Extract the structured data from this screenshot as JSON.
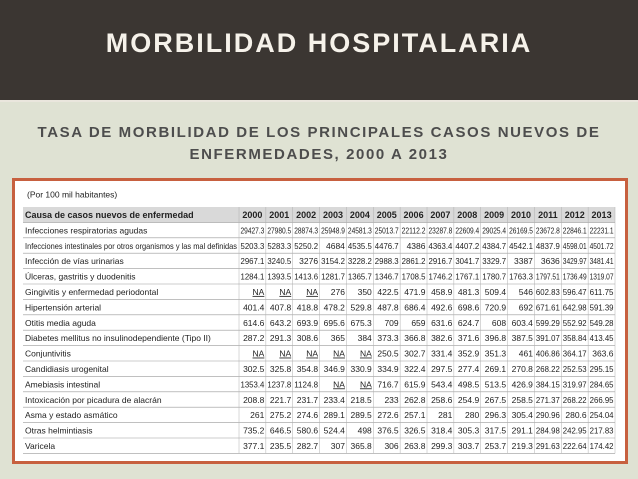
{
  "header": {
    "title": "MORBILIDAD HOSPITALARIA"
  },
  "subtitle": "TASA DE MORBILIDAD DE LOS PRINCIPALES CASOS NUEVOS DE ENFERMEDADES, 2000 A 2013",
  "table": {
    "note": "(Por 100 mil habitantes)",
    "columns": [
      "Causa de casos nuevos de enfermedad",
      "2000",
      "2001",
      "2002",
      "2003",
      "2004",
      "2005",
      "2006",
      "2007",
      "2008",
      "2009",
      "2010",
      "2011",
      "2012",
      "2013"
    ],
    "rows": [
      [
        "Infecciones respiratorias agudas",
        29427.3,
        27980.5,
        28874.3,
        25948.9,
        24581.3,
        25013.7,
        22112.2,
        23287.8,
        22609.4,
        29025.4,
        26169.5,
        23672.8,
        22846.1,
        22231.1
      ],
      [
        "Infecciones intestinales por otros organismos y las mal definidas",
        5203.3,
        5283.3,
        5250.2,
        4684,
        4535.5,
        4476.7,
        4386,
        4363.4,
        4407.2,
        4384.7,
        4542.1,
        4837.9,
        4598.01,
        4501.72
      ],
      [
        "Infección de vías urinarias",
        2967.1,
        3240.5,
        3276,
        3154.2,
        3228.2,
        2988.3,
        2861.2,
        2916.7,
        3041.7,
        3329.7,
        3387,
        3636,
        3429.97,
        3481.41
      ],
      [
        "Úlceras, gastritis y duodenitis",
        1284.1,
        1393.5,
        1413.6,
        1281.7,
        1365.7,
        1346.7,
        1708.5,
        1746.2,
        1767.1,
        1780.7,
        1763.3,
        1797.51,
        1736.49,
        1319.07
      ],
      [
        "Gingivitis y enfermedad periodontal",
        "NA",
        "NA",
        "NA",
        276,
        350,
        422.5,
        471.9,
        458.9,
        481.3,
        509.4,
        546,
        602.83,
        596.47,
        611.75
      ],
      [
        "Hipertensión arterial",
        401.4,
        407.8,
        418.8,
        478.2,
        529.8,
        487.8,
        686.4,
        492.6,
        698.6,
        720.9,
        692,
        671.61,
        642.98,
        591.39
      ],
      [
        "Otitis media aguda",
        614.6,
        643.2,
        693.9,
        695.6,
        675.3,
        709,
        659,
        631.6,
        624.7,
        608,
        603.4,
        599.29,
        552.92,
        549.28
      ],
      [
        "Diabetes mellitus no insulinodependiente (Tipo II)",
        287.2,
        291.3,
        308.6,
        365,
        384,
        373.3,
        366.8,
        382.6,
        371.6,
        396.8,
        387.5,
        391.07,
        358.84,
        413.45
      ],
      [
        "Conjuntivitis",
        "NA",
        "NA",
        "NA",
        "NA",
        "NA",
        250.5,
        302.7,
        331.4,
        352.9,
        351.3,
        461,
        406.86,
        364.17,
        363.6
      ],
      [
        "Candidiasis urogenital",
        302.5,
        325.8,
        354.8,
        346.9,
        330.9,
        334.9,
        322.4,
        297.5,
        277.4,
        269.1,
        270.8,
        268.22,
        252.53,
        295.15
      ],
      [
        "Amebiasis intestinal",
        1353.4,
        1237.8,
        1124.8,
        "NA",
        "NA",
        716.7,
        615.9,
        543.4,
        498.5,
        513.5,
        426.9,
        384.15,
        319.97,
        284.65
      ],
      [
        "Intoxicación por picadura de alacrán",
        208.8,
        221.7,
        231.7,
        233.4,
        218.5,
        233,
        262.8,
        258.6,
        254.9,
        267.5,
        258.5,
        271.37,
        268.22,
        266.95
      ],
      [
        "Asma y estado asmático",
        261,
        275.2,
        274.6,
        289.1,
        289.5,
        272.6,
        257.1,
        281,
        280,
        296.3,
        305.4,
        290.96,
        280.6,
        254.04
      ],
      [
        "Otras helmintiasis",
        735.2,
        646.5,
        580.6,
        524.4,
        498,
        376.5,
        326.5,
        318.4,
        305.3,
        317.5,
        291.1,
        284.98,
        242.95,
        217.83
      ],
      [
        "Varicela",
        377.1,
        235.5,
        282.7,
        307,
        365.8,
        306,
        263.8,
        299.3,
        303.7,
        253.7,
        219.3,
        291.63,
        222.64,
        174.42
      ]
    ]
  }
}
